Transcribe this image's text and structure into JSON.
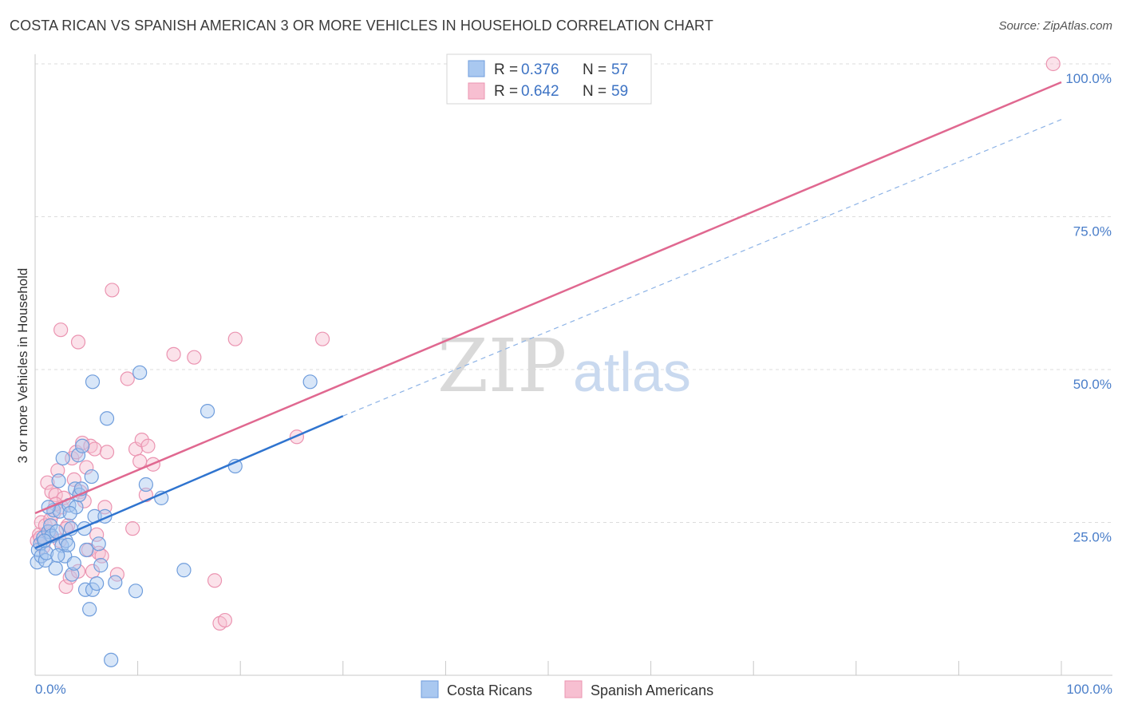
{
  "header": {
    "title": "COSTA RICAN VS SPANISH AMERICAN 3 OR MORE VEHICLES IN HOUSEHOLD CORRELATION CHART",
    "source": "Source: ZipAtlas.com"
  },
  "watermark": {
    "part1": "ZIP",
    "part2": "atlas"
  },
  "legend": {
    "blue": {
      "r_label": "R =",
      "r_value": "0.376",
      "n_label": "N =",
      "n_value": "57"
    },
    "pink": {
      "r_label": "R =",
      "r_value": "0.642",
      "n_label": "N =",
      "n_value": "59"
    }
  },
  "bottom_legend": {
    "blue_label": "Costa Ricans",
    "pink_label": "Spanish Americans"
  },
  "colors": {
    "blue_fill": "#a9c8f0",
    "blue_stroke": "#6f9ddc",
    "blue_line": "#2f74cf",
    "pink_fill": "#f7bfd1",
    "pink_stroke": "#eb94b1",
    "pink_line": "#e06890",
    "grid": "#dcdcdc",
    "tick_label": "#4a7ec9"
  },
  "chart_data": {
    "type": "scatter",
    "title": "COSTA RICAN VS SPANISH AMERICAN 3 OR MORE VEHICLES IN HOUSEHOLD CORRELATION CHART",
    "ylabel": "3 or more Vehicles in Household",
    "xlim": [
      0,
      100
    ],
    "ylim": [
      0,
      100
    ],
    "x_tick_labels": [
      "0.0%",
      "100.0%"
    ],
    "y_ticks": [
      25,
      50,
      75,
      100
    ],
    "y_tick_labels": [
      "25.0%",
      "50.0%",
      "75.0%",
      "100.0%"
    ],
    "grid": true,
    "legend_position": "top-center",
    "series": [
      {
        "name": "Costa Ricans",
        "r": 0.376,
        "n": 57,
        "trend": {
          "x0": 0,
          "y0": 20.8,
          "x1": 30,
          "y1": 42.4,
          "dashed_to_x": 100,
          "dashed_to_y": 90.9
        },
        "points": [
          [
            0.2,
            18.5
          ],
          [
            0.3,
            20.5
          ],
          [
            0.5,
            21.5
          ],
          [
            0.6,
            19.5
          ],
          [
            0.8,
            22.5
          ],
          [
            1.0,
            18.8
          ],
          [
            1.1,
            20.0
          ],
          [
            1.3,
            23.5
          ],
          [
            1.5,
            24.5
          ],
          [
            1.6,
            22.8
          ],
          [
            1.8,
            27.0
          ],
          [
            2.0,
            17.5
          ],
          [
            2.1,
            23.5
          ],
          [
            2.3,
            31.8
          ],
          [
            2.4,
            26.8
          ],
          [
            2.6,
            21.2
          ],
          [
            2.7,
            35.5
          ],
          [
            2.9,
            19.5
          ],
          [
            3.0,
            22.0
          ],
          [
            3.2,
            21.3
          ],
          [
            3.3,
            27.8
          ],
          [
            3.5,
            24.0
          ],
          [
            3.6,
            16.5
          ],
          [
            3.8,
            18.3
          ],
          [
            3.9,
            30.5
          ],
          [
            4.0,
            27.5
          ],
          [
            4.2,
            36.0
          ],
          [
            4.3,
            29.5
          ],
          [
            4.5,
            30.5
          ],
          [
            4.6,
            37.5
          ],
          [
            4.8,
            24.0
          ],
          [
            4.9,
            14.0
          ],
          [
            5.0,
            20.5
          ],
          [
            5.3,
            10.8
          ],
          [
            5.5,
            32.5
          ],
          [
            5.6,
            14.0
          ],
          [
            5.8,
            26.0
          ],
          [
            6.0,
            15.0
          ],
          [
            6.2,
            21.5
          ],
          [
            6.4,
            18.0
          ],
          [
            6.8,
            26.0
          ],
          [
            7.0,
            42.0
          ],
          [
            7.4,
            2.5
          ],
          [
            7.8,
            15.2
          ],
          [
            9.8,
            13.8
          ],
          [
            10.2,
            49.5
          ],
          [
            10.8,
            31.2
          ],
          [
            12.3,
            29.0
          ],
          [
            14.5,
            17.2
          ],
          [
            16.8,
            43.2
          ],
          [
            19.5,
            34.2
          ],
          [
            26.8,
            48.0
          ],
          [
            5.6,
            48.0
          ],
          [
            1.3,
            27.5
          ],
          [
            2.2,
            19.6
          ],
          [
            0.9,
            22.0
          ],
          [
            3.4,
            26.5
          ]
        ]
      },
      {
        "name": "Spanish Americans",
        "r": 0.642,
        "n": 59,
        "trend": {
          "x0": 0,
          "y0": 26.5,
          "x1": 100,
          "y1": 97.0
        },
        "points": [
          [
            0.2,
            22.0
          ],
          [
            0.4,
            23.0
          ],
          [
            0.6,
            25.0
          ],
          [
            0.8,
            21.0
          ],
          [
            1.0,
            24.5
          ],
          [
            1.2,
            31.5
          ],
          [
            1.4,
            23.0
          ],
          [
            1.6,
            30.0
          ],
          [
            1.8,
            26.5
          ],
          [
            2.0,
            29.5
          ],
          [
            2.2,
            33.5
          ],
          [
            2.4,
            22.0
          ],
          [
            2.6,
            27.5
          ],
          [
            2.8,
            29.0
          ],
          [
            3.0,
            14.5
          ],
          [
            3.2,
            24.5
          ],
          [
            3.4,
            16.0
          ],
          [
            3.6,
            35.5
          ],
          [
            3.8,
            32.0
          ],
          [
            4.0,
            36.5
          ],
          [
            4.2,
            17.0
          ],
          [
            4.4,
            30.0
          ],
          [
            4.6,
            38.0
          ],
          [
            4.8,
            28.5
          ],
          [
            5.0,
            34.0
          ],
          [
            5.2,
            20.5
          ],
          [
            5.4,
            37.5
          ],
          [
            5.6,
            17.0
          ],
          [
            5.8,
            37.0
          ],
          [
            6.0,
            23.0
          ],
          [
            6.2,
            20.0
          ],
          [
            6.8,
            27.5
          ],
          [
            7.0,
            36.5
          ],
          [
            7.5,
            63.0
          ],
          [
            9.0,
            48.5
          ],
          [
            9.5,
            24.0
          ],
          [
            9.8,
            37.0
          ],
          [
            10.2,
            35.0
          ],
          [
            10.4,
            38.5
          ],
          [
            10.8,
            29.5
          ],
          [
            11.0,
            37.5
          ],
          [
            11.5,
            34.5
          ],
          [
            13.5,
            52.5
          ],
          [
            15.5,
            52.0
          ],
          [
            17.5,
            15.5
          ],
          [
            18.0,
            8.5
          ],
          [
            18.5,
            9.0
          ],
          [
            19.5,
            55.0
          ],
          [
            25.5,
            39.0
          ],
          [
            28.0,
            55.0
          ],
          [
            2.5,
            56.5
          ],
          [
            4.2,
            54.5
          ],
          [
            0.5,
            22.5
          ],
          [
            1.5,
            25.5
          ],
          [
            2.0,
            28.0
          ],
          [
            3.0,
            24.0
          ],
          [
            6.5,
            19.5
          ],
          [
            8.0,
            16.5
          ],
          [
            99.2,
            100.0
          ]
        ]
      }
    ]
  }
}
